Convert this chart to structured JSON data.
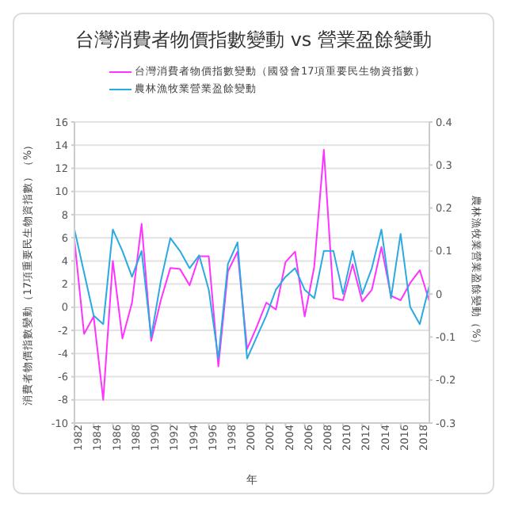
{
  "chart_data": {
    "type": "line",
    "title": "台灣消費者物價指數變動 vs 營業盈餘變動",
    "xlabel": "年",
    "ylabel": "消費者物價指數變動（17項重要民生物資指數）（%）",
    "y2label": "農林漁牧業營業盈餘變動（%）",
    "x": [
      1982,
      1983,
      1984,
      1985,
      1986,
      1987,
      1988,
      1989,
      1990,
      1991,
      1992,
      1993,
      1994,
      1995,
      1996,
      1997,
      1998,
      1999,
      2000,
      2001,
      2002,
      2003,
      2004,
      2005,
      2006,
      2007,
      2008,
      2009,
      2010,
      2011,
      2012,
      2013,
      2014,
      2015,
      2016,
      2017,
      2018,
      2019
    ],
    "series": [
      {
        "name": "台灣消費者物價指數變動（國發會17項重要民生物資指數）",
        "color": "#ff33ff",
        "values": [
          5.8,
          -2.3,
          -0.8,
          -8.0,
          4.0,
          -2.7,
          0.4,
          7.2,
          -2.9,
          0.6,
          3.4,
          3.3,
          1.9,
          4.4,
          4.4,
          -5.1,
          3.1,
          4.8,
          -3.6,
          -1.7,
          0.4,
          -0.2,
          3.9,
          4.8,
          -0.8,
          3.5,
          13.6,
          0.8,
          0.6,
          3.7,
          0.5,
          1.5,
          5.2,
          1.0,
          0.6,
          2.1,
          3.2,
          0.5
        ]
      },
      {
        "name": "農林漁牧業營業盈餘變動",
        "color": "#29aae1",
        "axis": "y2",
        "values": [
          0.15,
          0.05,
          -0.05,
          -0.07,
          0.15,
          0.1,
          0.04,
          0.1,
          -0.1,
          0.03,
          0.13,
          0.1,
          0.06,
          0.09,
          0.01,
          -0.15,
          0.07,
          0.12,
          -0.15,
          -0.1,
          -0.05,
          0.01,
          0.04,
          0.06,
          0.01,
          -0.01,
          0.1,
          0.1,
          0.0,
          0.1,
          0.0,
          0.06,
          0.15,
          -0.01,
          0.14,
          -0.03,
          -0.07,
          0.02
        ]
      }
    ],
    "xlim": [
      1982,
      2019
    ],
    "xticks": [
      1982,
      1984,
      1986,
      1988,
      1990,
      1992,
      1994,
      1996,
      1998,
      2000,
      2002,
      2004,
      2006,
      2008,
      2010,
      2012,
      2014,
      2016,
      2018
    ],
    "ylim": [
      -10,
      16
    ],
    "yticks": [
      -10,
      -8,
      -6,
      -4,
      -2,
      0,
      2,
      4,
      6,
      8,
      10,
      12,
      14,
      16
    ],
    "y2lim": [
      -0.3,
      0.4
    ],
    "y2ticks": [
      -0.3,
      -0.2,
      -0.1,
      0.0,
      0.1,
      0.2,
      0.3,
      0.4
    ],
    "grid": "y",
    "legend": "top",
    "marker": "none",
    "line_style": "solid"
  }
}
